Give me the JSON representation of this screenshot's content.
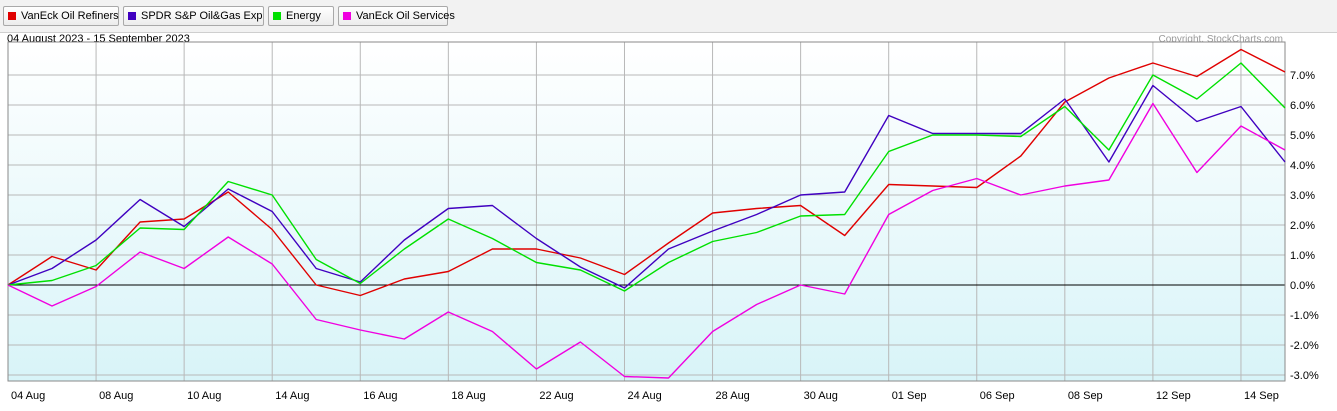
{
  "legend": [
    {
      "label": "VanEck Oil Refiners",
      "color": "#e00000"
    },
    {
      "label": "SPDR S&P Oil&Gas Exp",
      "color": "#4000c0"
    },
    {
      "label": "Energy",
      "color": "#00e000"
    },
    {
      "label": "VanEck Oil Services",
      "color": "#f000e0"
    }
  ],
  "date_range": "04 August 2023 - 15 September 2023",
  "copyright": "Copyright, StockCharts.com",
  "chart_data": {
    "type": "line",
    "ylim": [
      -3.2,
      8.1
    ],
    "yticks": [
      -3,
      -2,
      -1,
      0,
      1,
      2,
      3,
      4,
      5,
      6,
      7
    ],
    "ytick_labels": [
      "-3.0%",
      "-2.0%",
      "-1.0%",
      "0.0%",
      "1.0%",
      "2.0%",
      "3.0%",
      "4.0%",
      "5.0%",
      "6.0%",
      "7.0%"
    ],
    "x": [
      "04 Aug",
      "07 Aug",
      "08 Aug",
      "09 Aug",
      "10 Aug",
      "11 Aug",
      "14 Aug",
      "15 Aug",
      "16 Aug",
      "17 Aug",
      "18 Aug",
      "21 Aug",
      "22 Aug",
      "23 Aug",
      "24 Aug",
      "25 Aug",
      "28 Aug",
      "29 Aug",
      "30 Aug",
      "31 Aug",
      "01 Sep",
      "05 Sep",
      "06 Sep",
      "07 Sep",
      "08 Sep",
      "11 Sep",
      "12 Sep",
      "13 Sep",
      "14 Sep",
      "15 Sep"
    ],
    "x_label_dates": [
      "04 Aug",
      "08 Aug",
      "10 Aug",
      "14 Aug",
      "16 Aug",
      "18 Aug",
      "22 Aug",
      "24 Aug",
      "28 Aug",
      "30 Aug",
      "01 Sep",
      "06 Sep",
      "08 Sep",
      "12 Sep",
      "14 Sep"
    ],
    "grid": true,
    "series": [
      {
        "name": "VanEck Oil Refiners",
        "color": "#e00000",
        "values": [
          0.0,
          0.95,
          0.5,
          2.1,
          2.2,
          3.1,
          1.85,
          0.0,
          -0.35,
          0.2,
          0.45,
          1.2,
          1.2,
          0.9,
          0.35,
          1.4,
          2.4,
          2.55,
          2.65,
          1.65,
          3.35,
          3.3,
          3.25,
          4.3,
          6.1,
          6.9,
          7.4,
          6.95,
          7.85,
          7.1
        ]
      },
      {
        "name": "SPDR S&P Oil&Gas Exp",
        "color": "#4000c0",
        "values": [
          0.0,
          0.55,
          1.5,
          2.85,
          1.95,
          3.2,
          2.45,
          0.55,
          0.1,
          1.5,
          2.55,
          2.65,
          1.55,
          0.6,
          -0.1,
          1.2,
          1.8,
          2.35,
          3.0,
          3.1,
          5.65,
          5.05,
          5.05,
          5.05,
          6.2,
          4.1,
          6.65,
          5.45,
          5.95,
          4.1
        ]
      },
      {
        "name": "Energy",
        "color": "#00e000",
        "values": [
          0.0,
          0.15,
          0.65,
          1.9,
          1.85,
          3.45,
          3.0,
          0.85,
          0.05,
          1.2,
          2.2,
          1.55,
          0.75,
          0.5,
          -0.2,
          0.75,
          1.45,
          1.75,
          2.3,
          2.35,
          4.45,
          5.0,
          5.0,
          4.95,
          5.95,
          4.5,
          7.0,
          6.2,
          7.4,
          5.9
        ]
      },
      {
        "name": "VanEck Oil Services",
        "color": "#f000e0",
        "values": [
          0.0,
          -0.7,
          -0.05,
          1.1,
          0.55,
          1.6,
          0.7,
          -1.15,
          -1.5,
          -1.8,
          -0.9,
          -1.55,
          -2.8,
          -1.9,
          -3.05,
          -3.1,
          -1.55,
          -0.65,
          0.0,
          -0.3,
          2.35,
          3.15,
          3.55,
          3.0,
          3.3,
          3.5,
          6.05,
          3.75,
          5.3,
          4.5
        ]
      }
    ]
  }
}
